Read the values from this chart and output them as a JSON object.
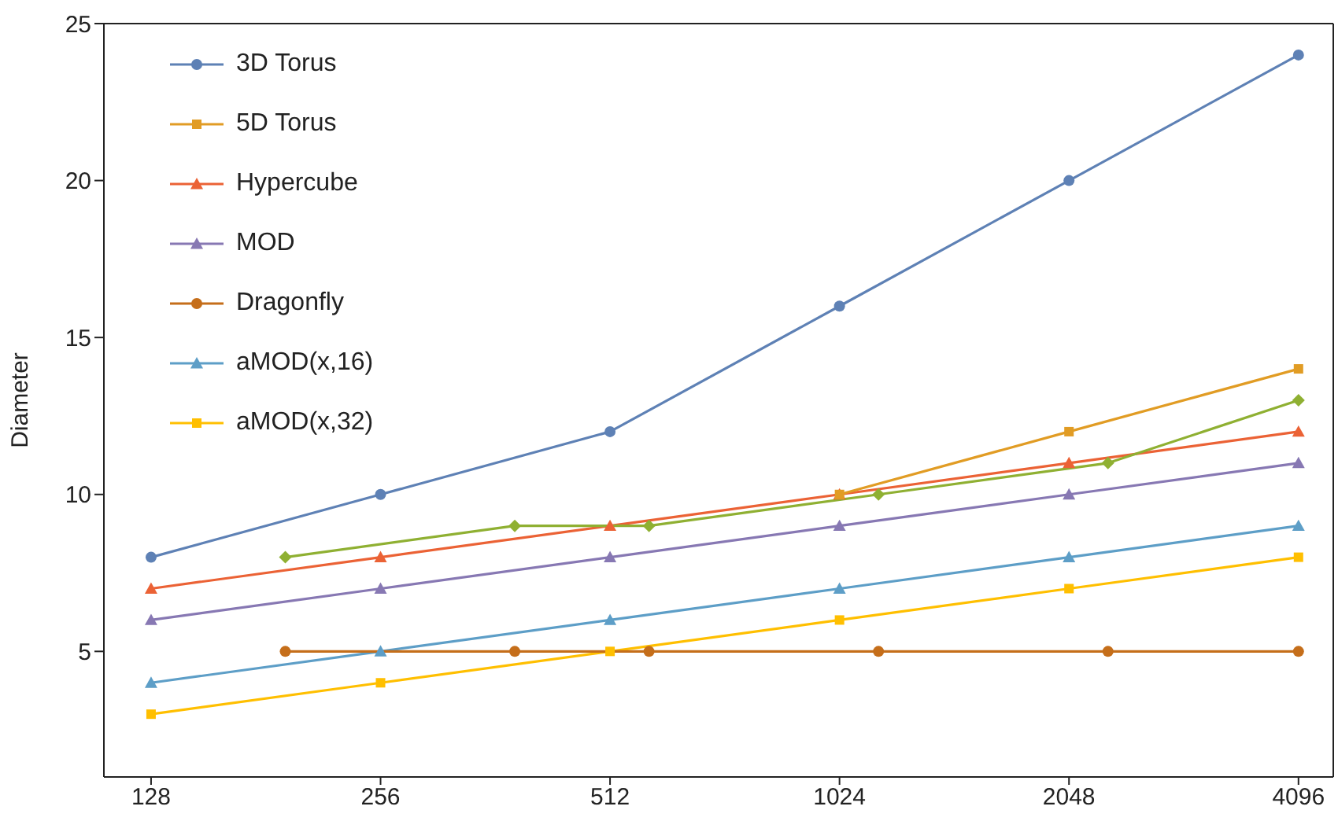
{
  "chart_data": {
    "type": "line",
    "ylabel": "Diameter",
    "xlim": [
      111,
      4550
    ],
    "xticks": [
      128,
      256,
      512,
      1024,
      2048,
      4096
    ],
    "ylim": [
      1,
      25
    ],
    "yticks": [
      5,
      10,
      15,
      20,
      25
    ],
    "log": "x",
    "grid": false,
    "legend": "top left",
    "series": [
      {
        "name": "3D Torus",
        "color": "#5e81b5",
        "marker": "circle",
        "x": [
          128,
          256,
          512,
          1024,
          2048,
          4096
        ],
        "values": [
          8,
          10,
          12,
          16,
          20,
          24
        ]
      },
      {
        "name": "5D Torus",
        "color": "#e19c24",
        "marker": "square",
        "x": [
          1024,
          2048,
          4096
        ],
        "values": [
          10,
          12,
          14
        ]
      },
      {
        "color": "#8fb032",
        "marker": "diamond",
        "x": [
          192,
          384,
          576,
          1152,
          2304,
          4096
        ],
        "values": [
          8,
          9,
          9,
          10,
          11,
          13
        ]
      },
      {
        "name": "Hypercube",
        "color": "#eb6235",
        "marker": "triangle",
        "x": [
          128,
          256,
          512,
          1024,
          2048,
          4096
        ],
        "values": [
          7,
          8,
          9,
          10,
          11,
          12
        ]
      },
      {
        "name": "MOD",
        "color": "#8778b3",
        "marker": "triangle",
        "x": [
          128,
          256,
          512,
          1024,
          2048,
          4096
        ],
        "values": [
          6,
          7,
          8,
          9,
          10,
          11
        ]
      },
      {
        "name": "Dragonfly",
        "color": "#c56e1a",
        "marker": "circle",
        "x": [
          192,
          384,
          576,
          1152,
          2304,
          4096
        ],
        "values": [
          5,
          5,
          5,
          5,
          5,
          5
        ]
      },
      {
        "name": "aMOD(x,16)",
        "color": "#5d9ec7",
        "marker": "triangle",
        "x": [
          128,
          256,
          512,
          1024,
          2048,
          4096
        ],
        "values": [
          4,
          5,
          6,
          7,
          8,
          9
        ]
      },
      {
        "name": "aMOD(x,32)",
        "color": "#ffbf00",
        "marker": "square",
        "x": [
          128,
          256,
          512,
          1024,
          2048,
          4096
        ],
        "values": [
          3,
          4,
          5,
          6,
          7,
          8
        ]
      }
    ]
  }
}
